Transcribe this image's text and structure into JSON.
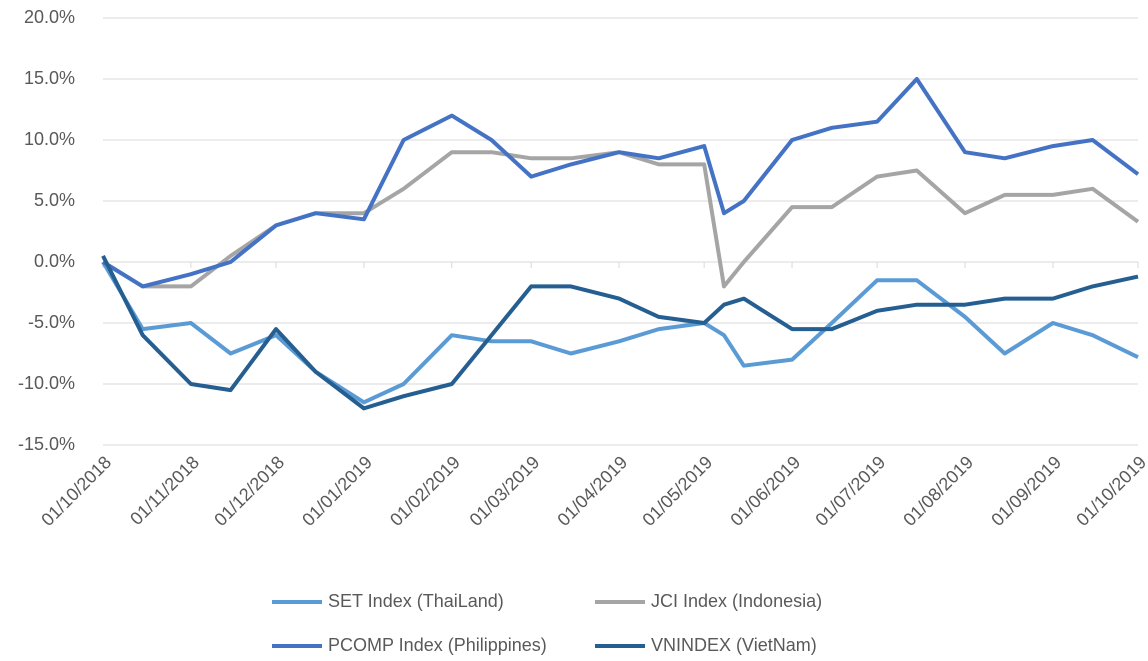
{
  "chart_data": {
    "type": "line",
    "x": [
      "2018-10-01",
      "2018-10-15",
      "2018-11-01",
      "2018-11-15",
      "2018-12-01",
      "2018-12-15",
      "2019-01-01",
      "2019-01-15",
      "2019-02-01",
      "2019-02-15",
      "2019-03-01",
      "2019-03-15",
      "2019-04-01",
      "2019-04-15",
      "2019-05-01",
      "2019-05-08",
      "2019-05-15",
      "2019-06-01",
      "2019-06-15",
      "2019-07-01",
      "2019-07-15",
      "2019-08-01",
      "2019-08-15",
      "2019-09-01",
      "2019-09-15",
      "2019-10-01"
    ],
    "series": [
      {
        "name": "SET Index (ThaiLand)",
        "color": "#5b9bd5",
        "values": [
          0,
          -5.5,
          -5,
          -7.5,
          -6,
          -9,
          -11.5,
          -10,
          -6,
          -6.5,
          -6.5,
          -7.5,
          -6.5,
          -5.5,
          -5,
          -6,
          -8.5,
          -8,
          -5,
          -1.5,
          -1.5,
          -4.5,
          -7.5,
          -5,
          -6,
          -7.8
        ]
      },
      {
        "name": "JCI Index (Indonesia)",
        "color": "#a5a5a5",
        "values": [
          0,
          -2,
          -2,
          0.5,
          3,
          4,
          4,
          6,
          9,
          9,
          8.5,
          8.5,
          9,
          8,
          8,
          -2,
          0,
          4.5,
          4.5,
          7,
          7.5,
          4,
          5.5,
          5.5,
          6,
          3.3
        ]
      },
      {
        "name": "PCOMP Index (Philippines)",
        "color": "#4472c4",
        "values": [
          0,
          -2,
          -1,
          0,
          3,
          4,
          3.5,
          10,
          12,
          10,
          7,
          8,
          9,
          8.5,
          9.5,
          4,
          5,
          10,
          11,
          11.5,
          15,
          9,
          8.5,
          9.5,
          10,
          7.2
        ]
      },
      {
        "name": "VNINDEX (VietNam)",
        "color": "#255e91",
        "values": [
          0.5,
          -6,
          -10,
          -10.5,
          -5.5,
          -9,
          -12,
          -11,
          -10,
          -6,
          -2,
          -2,
          -3,
          -4.5,
          -5,
          -3.5,
          -3,
          -5.5,
          -5.5,
          -4,
          -3.5,
          -3.5,
          -3,
          -3,
          -2,
          -1.2
        ]
      }
    ],
    "xlim": [
      "2018-10-01",
      "2019-10-01"
    ],
    "xticks": [
      {
        "value": "2018-10-01",
        "label": "01/10/2018"
      },
      {
        "value": "2018-11-01",
        "label": "01/11/2018"
      },
      {
        "value": "2018-12-01",
        "label": "01/12/2018"
      },
      {
        "value": "2019-01-01",
        "label": "01/01/2019"
      },
      {
        "value": "2019-02-01",
        "label": "01/02/2019"
      },
      {
        "value": "2019-03-01",
        "label": "01/03/2019"
      },
      {
        "value": "2019-04-01",
        "label": "01/04/2019"
      },
      {
        "value": "2019-05-01",
        "label": "01/05/2019"
      },
      {
        "value": "2019-06-01",
        "label": "01/06/2019"
      },
      {
        "value": "2019-07-01",
        "label": "01/07/2019"
      },
      {
        "value": "2019-08-01",
        "label": "01/08/2019"
      },
      {
        "value": "2019-09-01",
        "label": "01/09/2019"
      },
      {
        "value": "2019-10-01",
        "label": "01/10/2019"
      }
    ],
    "ylim": [
      -15,
      20
    ],
    "yticks": [
      {
        "value": -15,
        "label": "-15.0%"
      },
      {
        "value": -10,
        "label": "-10.0%"
      },
      {
        "value": -5,
        "label": "-5.0%"
      },
      {
        "value": 0,
        "label": "0.0%"
      },
      {
        "value": 5,
        "label": "5.0%"
      },
      {
        "value": 10,
        "label": "10.0%"
      },
      {
        "value": 15,
        "label": "15.0%"
      },
      {
        "value": 20,
        "label": "20.0%"
      }
    ],
    "grid": true,
    "legend": "bottom"
  }
}
